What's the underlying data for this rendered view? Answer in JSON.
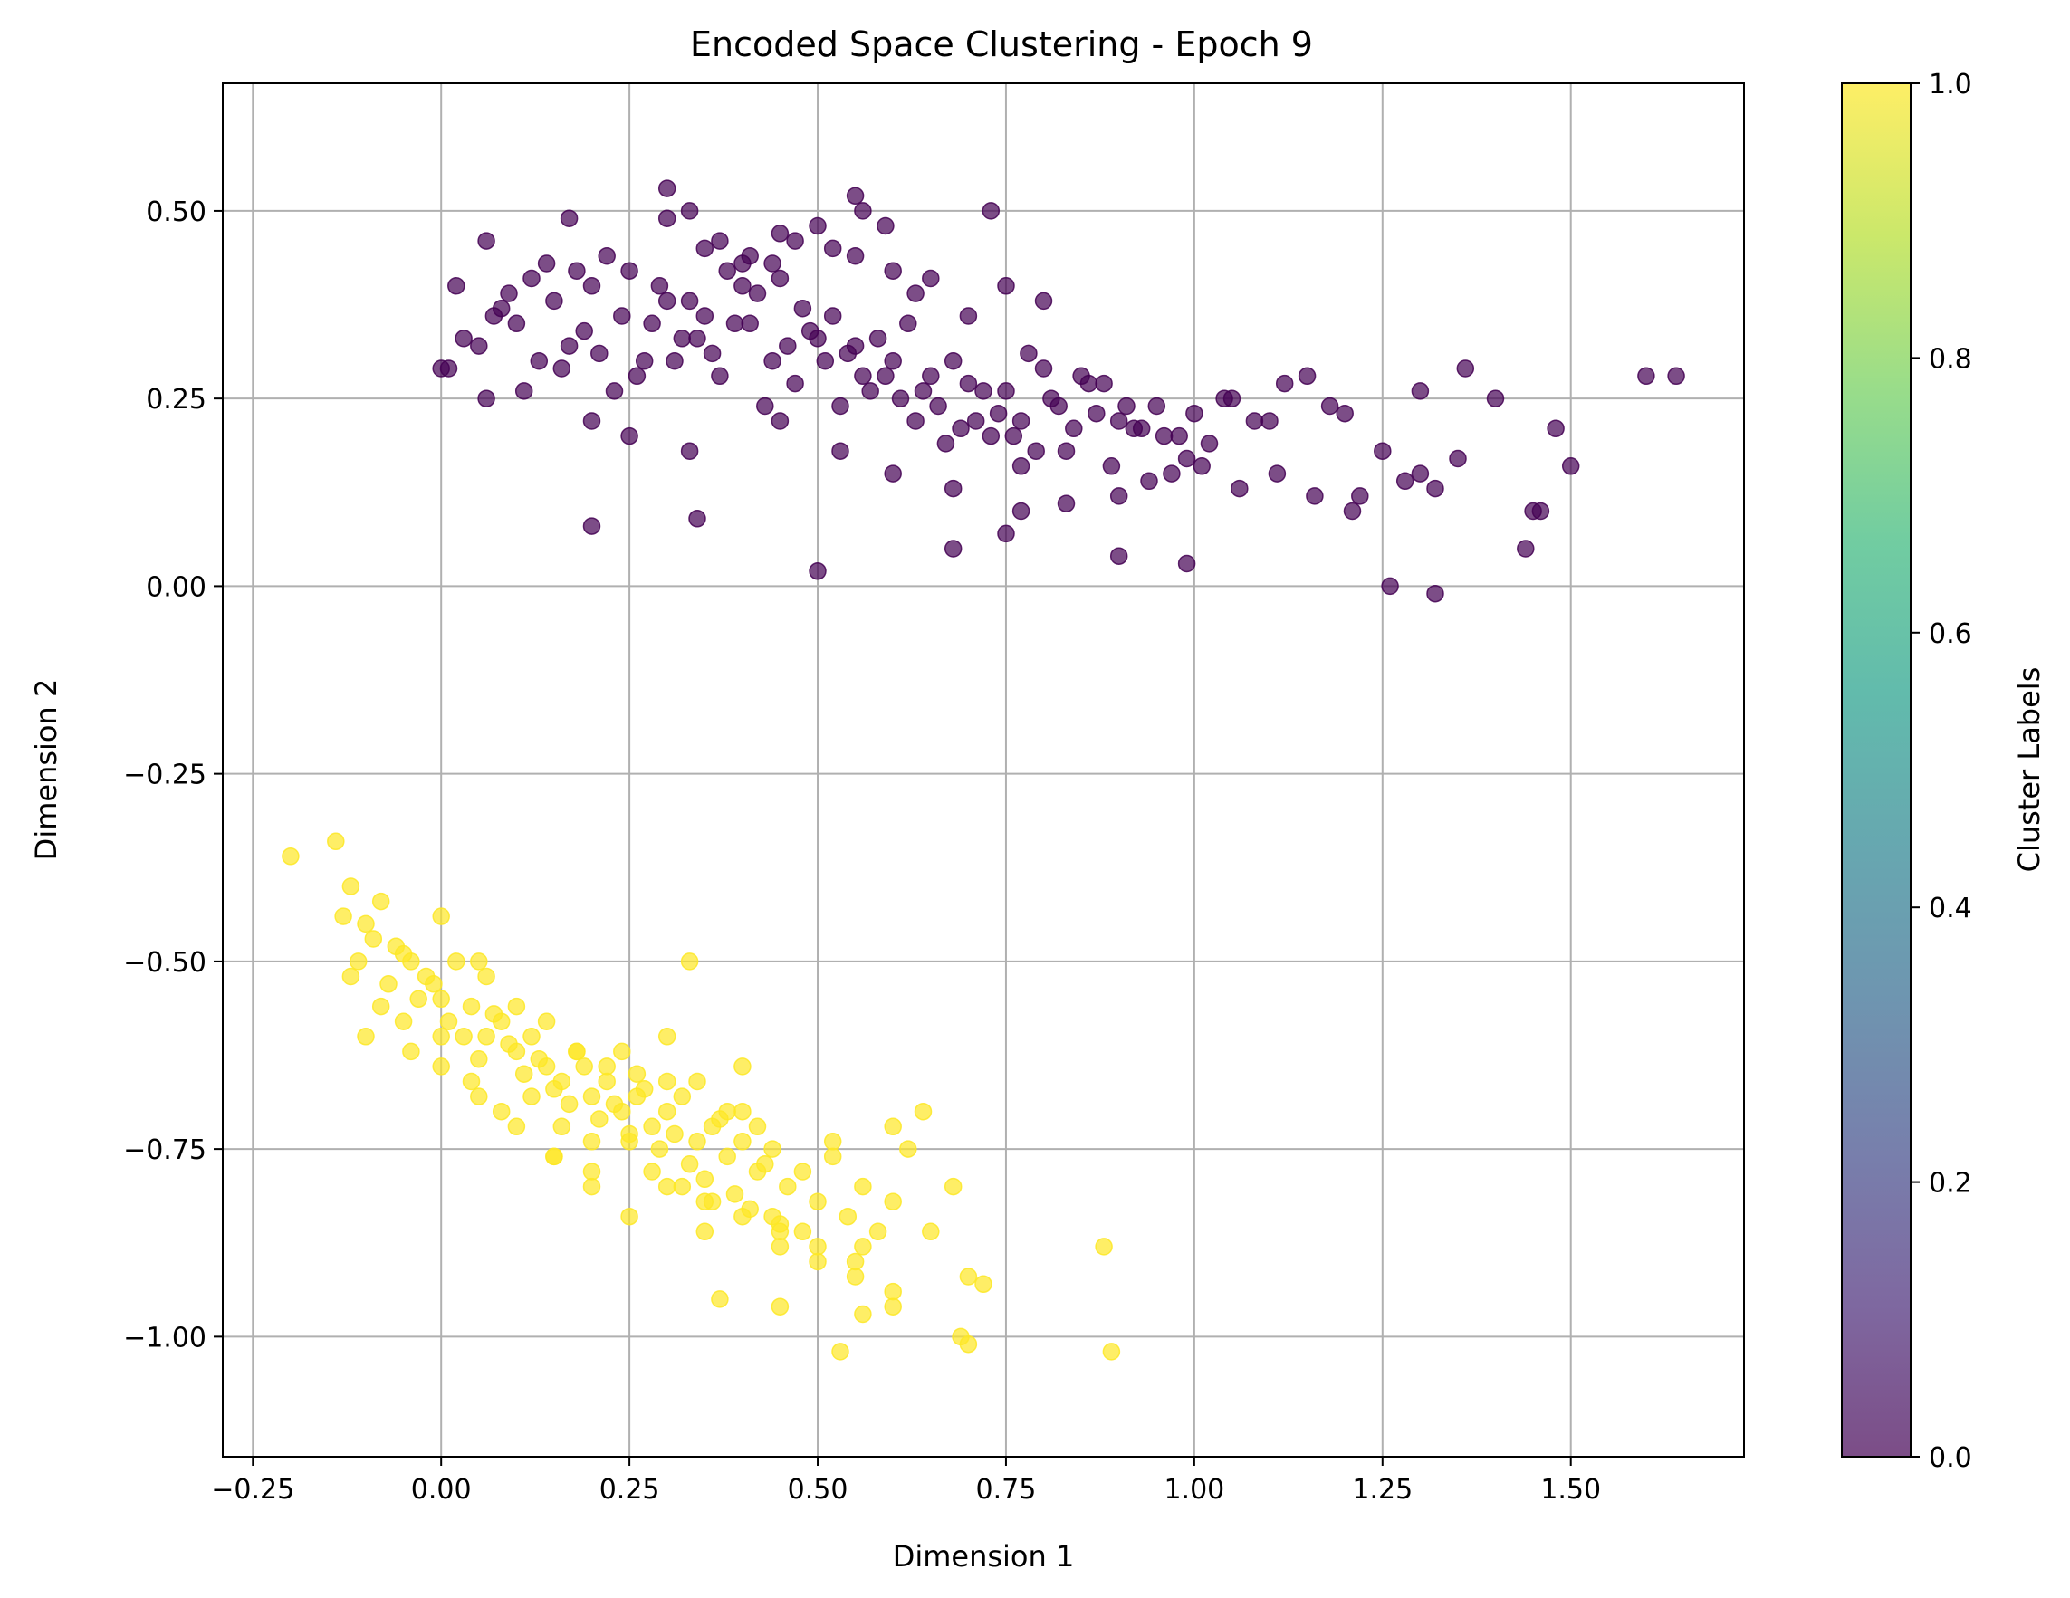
{
  "chart_data": {
    "type": "scatter",
    "title": "Encoded Space Clustering - Epoch 9",
    "xlabel": "Dimension 1",
    "ylabel": "Dimension 2",
    "xlim": [
      -0.29,
      1.73
    ],
    "ylim": [
      -1.16,
      0.67
    ],
    "xticks": [
      -0.25,
      0.0,
      0.25,
      0.5,
      0.75,
      1.0,
      1.25,
      1.5
    ],
    "xtick_labels": [
      "−0.25",
      "0.00",
      "0.25",
      "0.50",
      "0.75",
      "1.00",
      "1.25",
      "1.50"
    ],
    "yticks": [
      -1.0,
      -0.75,
      -0.5,
      -0.25,
      0.0,
      0.25,
      0.5
    ],
    "ytick_labels": [
      "−1.00",
      "−0.75",
      "−0.50",
      "−0.25",
      "0.00",
      "0.25",
      "0.50"
    ],
    "grid": true,
    "colorbar": {
      "label": "Cluster Labels",
      "range": [
        0.0,
        1.0
      ],
      "ticks": [
        0.0,
        0.2,
        0.4,
        0.6,
        0.8,
        1.0
      ],
      "tick_labels": [
        "0.0",
        "0.2",
        "0.4",
        "0.6",
        "0.8",
        "1.0"
      ],
      "colormap": "viridis",
      "colors": [
        "#440154",
        "#482878",
        "#3e4989",
        "#31688e",
        "#26828e",
        "#1f9e89",
        "#35b779",
        "#6ece58",
        "#b5de2b",
        "#fde725"
      ],
      "alpha": 0.7
    },
    "series": [
      {
        "label_value": 0,
        "color": "#440154",
        "x": [
          0.0,
          0.05,
          0.1,
          0.15,
          0.2,
          0.25,
          0.3,
          0.35,
          0.4,
          0.45,
          0.5,
          0.55,
          0.6,
          0.65,
          0.7,
          0.75,
          0.8,
          0.85,
          0.9,
          0.95,
          1.0,
          1.05,
          1.1,
          1.15,
          1.2,
          1.25,
          1.3,
          1.35,
          1.4,
          1.45,
          1.5,
          1.6,
          1.64,
          0.02,
          0.08,
          0.12,
          0.18,
          0.22,
          0.28,
          0.33,
          0.38,
          0.42,
          0.48,
          0.52,
          0.58,
          0.62,
          0.68,
          0.72,
          0.78,
          0.82,
          0.88,
          0.92,
          0.98,
          1.02,
          1.08,
          1.12,
          1.18,
          1.22,
          1.28,
          1.32,
          0.03,
          0.07,
          0.13,
          0.17,
          0.23,
          0.27,
          0.32,
          0.37,
          0.43,
          0.47,
          0.53,
          0.57,
          0.63,
          0.67,
          0.73,
          0.77,
          0.83,
          0.87,
          0.93,
          0.97,
          0.01,
          0.06,
          0.11,
          0.16,
          0.21,
          0.26,
          0.31,
          0.36,
          0.41,
          0.46,
          0.51,
          0.56,
          0.61,
          0.66,
          0.71,
          0.76,
          0.81,
          0.86,
          0.91,
          0.96,
          1.01,
          1.06,
          1.11,
          1.16,
          1.21,
          0.09,
          0.14,
          0.19,
          0.24,
          0.29,
          0.34,
          0.39,
          0.44,
          0.49,
          0.54,
          0.59,
          0.64,
          0.69,
          0.74,
          0.79,
          0.84,
          0.89,
          0.94,
          0.99,
          1.04,
          0.35,
          0.4,
          0.45,
          0.5,
          0.55,
          0.6,
          0.65,
          0.7,
          0.75,
          0.8,
          0.3,
          0.33,
          0.37,
          0.41,
          0.44,
          0.47,
          0.52,
          0.56,
          0.59,
          0.63,
          0.2,
          0.25,
          0.33,
          0.45,
          0.53,
          0.6,
          0.68,
          0.77,
          0.83,
          0.9,
          0.2,
          0.34,
          0.5,
          0.68,
          0.75,
          0.77,
          0.9,
          0.99,
          1.26,
          1.32,
          1.44,
          1.46,
          1.48,
          1.36,
          1.3,
          0.3,
          0.55,
          0.73,
          0.17,
          0.06
        ],
        "y": [
          0.29,
          0.32,
          0.35,
          0.38,
          0.4,
          0.42,
          0.38,
          0.36,
          0.4,
          0.41,
          0.33,
          0.32,
          0.3,
          0.28,
          0.27,
          0.26,
          0.29,
          0.28,
          0.22,
          0.24,
          0.23,
          0.25,
          0.22,
          0.28,
          0.23,
          0.18,
          0.15,
          0.17,
          0.25,
          0.1,
          0.16,
          0.28,
          0.28,
          0.4,
          0.37,
          0.41,
          0.42,
          0.44,
          0.35,
          0.38,
          0.42,
          0.39,
          0.37,
          0.36,
          0.33,
          0.35,
          0.3,
          0.26,
          0.31,
          0.24,
          0.27,
          0.21,
          0.2,
          0.19,
          0.22,
          0.27,
          0.24,
          0.12,
          0.14,
          0.13,
          0.33,
          0.36,
          0.3,
          0.32,
          0.26,
          0.3,
          0.33,
          0.28,
          0.24,
          0.27,
          0.24,
          0.26,
          0.22,
          0.19,
          0.2,
          0.22,
          0.18,
          0.23,
          0.21,
          0.15,
          0.29,
          0.25,
          0.26,
          0.29,
          0.31,
          0.28,
          0.3,
          0.31,
          0.35,
          0.32,
          0.3,
          0.28,
          0.25,
          0.24,
          0.22,
          0.2,
          0.25,
          0.27,
          0.24,
          0.2,
          0.16,
          0.13,
          0.15,
          0.12,
          0.1,
          0.39,
          0.43,
          0.34,
          0.36,
          0.4,
          0.33,
          0.35,
          0.3,
          0.34,
          0.31,
          0.28,
          0.26,
          0.21,
          0.23,
          0.18,
          0.21,
          0.16,
          0.14,
          0.17,
          0.25,
          0.45,
          0.43,
          0.47,
          0.48,
          0.44,
          0.42,
          0.41,
          0.36,
          0.4,
          0.38,
          0.49,
          0.5,
          0.46,
          0.44,
          0.43,
          0.46,
          0.45,
          0.5,
          0.48,
          0.39,
          0.22,
          0.2,
          0.18,
          0.22,
          0.18,
          0.15,
          0.13,
          0.16,
          0.11,
          0.12,
          0.08,
          0.09,
          0.02,
          0.05,
          0.07,
          0.1,
          0.04,
          0.03,
          0.0,
          -0.01,
          0.05,
          0.1,
          0.21,
          0.29,
          0.26,
          0.53,
          0.52,
          0.5,
          0.49,
          0.46
        ]
      },
      {
        "label_value": 1,
        "color": "#fde725",
        "x": [
          -0.2,
          -0.14,
          -0.12,
          -0.1,
          -0.08,
          -0.06,
          -0.04,
          -0.02,
          0.0,
          0.02,
          0.04,
          0.06,
          0.08,
          0.1,
          0.12,
          0.14,
          0.16,
          0.18,
          0.2,
          0.22,
          0.24,
          0.26,
          0.28,
          0.3,
          0.32,
          0.34,
          0.36,
          0.38,
          0.4,
          0.42,
          0.44,
          0.46,
          0.48,
          0.5,
          0.52,
          0.54,
          0.56,
          0.58,
          0.6,
          0.62,
          -0.13,
          -0.11,
          -0.09,
          -0.07,
          -0.05,
          -0.03,
          -0.01,
          0.01,
          0.03,
          0.05,
          0.07,
          0.09,
          0.11,
          0.13,
          0.15,
          0.17,
          0.19,
          0.21,
          0.23,
          0.25,
          0.27,
          0.29,
          0.31,
          0.33,
          0.35,
          0.37,
          0.39,
          0.41,
          0.43,
          0.45,
          -0.12,
          -0.08,
          -0.04,
          0.0,
          0.04,
          0.08,
          0.12,
          0.16,
          0.2,
          0.24,
          0.28,
          0.32,
          0.36,
          0.4,
          0.44,
          0.48,
          0.52,
          0.56,
          0.6,
          0.64,
          -0.1,
          -0.05,
          0.0,
          0.05,
          0.1,
          0.15,
          0.2,
          0.25,
          0.3,
          0.35,
          0.4,
          0.45,
          0.5,
          0.55,
          0.6,
          0.65,
          0.68,
          0.7,
          0.72,
          0.88,
          0.06,
          0.1,
          0.14,
          0.18,
          0.22,
          0.26,
          0.3,
          0.34,
          0.38,
          0.42,
          0.15,
          0.2,
          0.25,
          0.3,
          0.35,
          0.4,
          0.45,
          0.5,
          0.55,
          0.6,
          0.37,
          0.45,
          0.53,
          0.56,
          0.69,
          0.7,
          0.89,
          0.33,
          0.0,
          0.05
        ],
        "y": [
          -0.36,
          -0.34,
          -0.4,
          -0.45,
          -0.42,
          -0.48,
          -0.5,
          -0.52,
          -0.55,
          -0.5,
          -0.56,
          -0.6,
          -0.58,
          -0.62,
          -0.6,
          -0.64,
          -0.66,
          -0.62,
          -0.68,
          -0.66,
          -0.7,
          -0.65,
          -0.72,
          -0.7,
          -0.68,
          -0.74,
          -0.72,
          -0.76,
          -0.74,
          -0.78,
          -0.75,
          -0.8,
          -0.78,
          -0.82,
          -0.76,
          -0.84,
          -0.8,
          -0.86,
          -0.72,
          -0.75,
          -0.44,
          -0.5,
          -0.47,
          -0.53,
          -0.49,
          -0.55,
          -0.53,
          -0.58,
          -0.6,
          -0.63,
          -0.57,
          -0.61,
          -0.65,
          -0.63,
          -0.67,
          -0.69,
          -0.64,
          -0.71,
          -0.69,
          -0.73,
          -0.67,
          -0.75,
          -0.73,
          -0.77,
          -0.79,
          -0.71,
          -0.81,
          -0.83,
          -0.77,
          -0.85,
          -0.52,
          -0.56,
          -0.62,
          -0.6,
          -0.66,
          -0.7,
          -0.68,
          -0.72,
          -0.74,
          -0.62,
          -0.78,
          -0.8,
          -0.82,
          -0.7,
          -0.84,
          -0.86,
          -0.74,
          -0.88,
          -0.82,
          -0.7,
          -0.6,
          -0.58,
          -0.64,
          -0.68,
          -0.72,
          -0.76,
          -0.8,
          -0.84,
          -0.66,
          -0.86,
          -0.64,
          -0.88,
          -0.9,
          -0.92,
          -0.94,
          -0.86,
          -0.8,
          -0.92,
          -0.93,
          -0.88,
          -0.52,
          -0.56,
          -0.58,
          -0.62,
          -0.64,
          -0.68,
          -0.6,
          -0.66,
          -0.7,
          -0.72,
          -0.76,
          -0.78,
          -0.74,
          -0.8,
          -0.82,
          -0.84,
          -0.86,
          -0.88,
          -0.9,
          -0.96,
          -0.95,
          -0.96,
          -1.02,
          -0.97,
          -1.0,
          -1.01,
          -1.02,
          -0.5,
          -0.44,
          -0.5
        ]
      }
    ]
  }
}
